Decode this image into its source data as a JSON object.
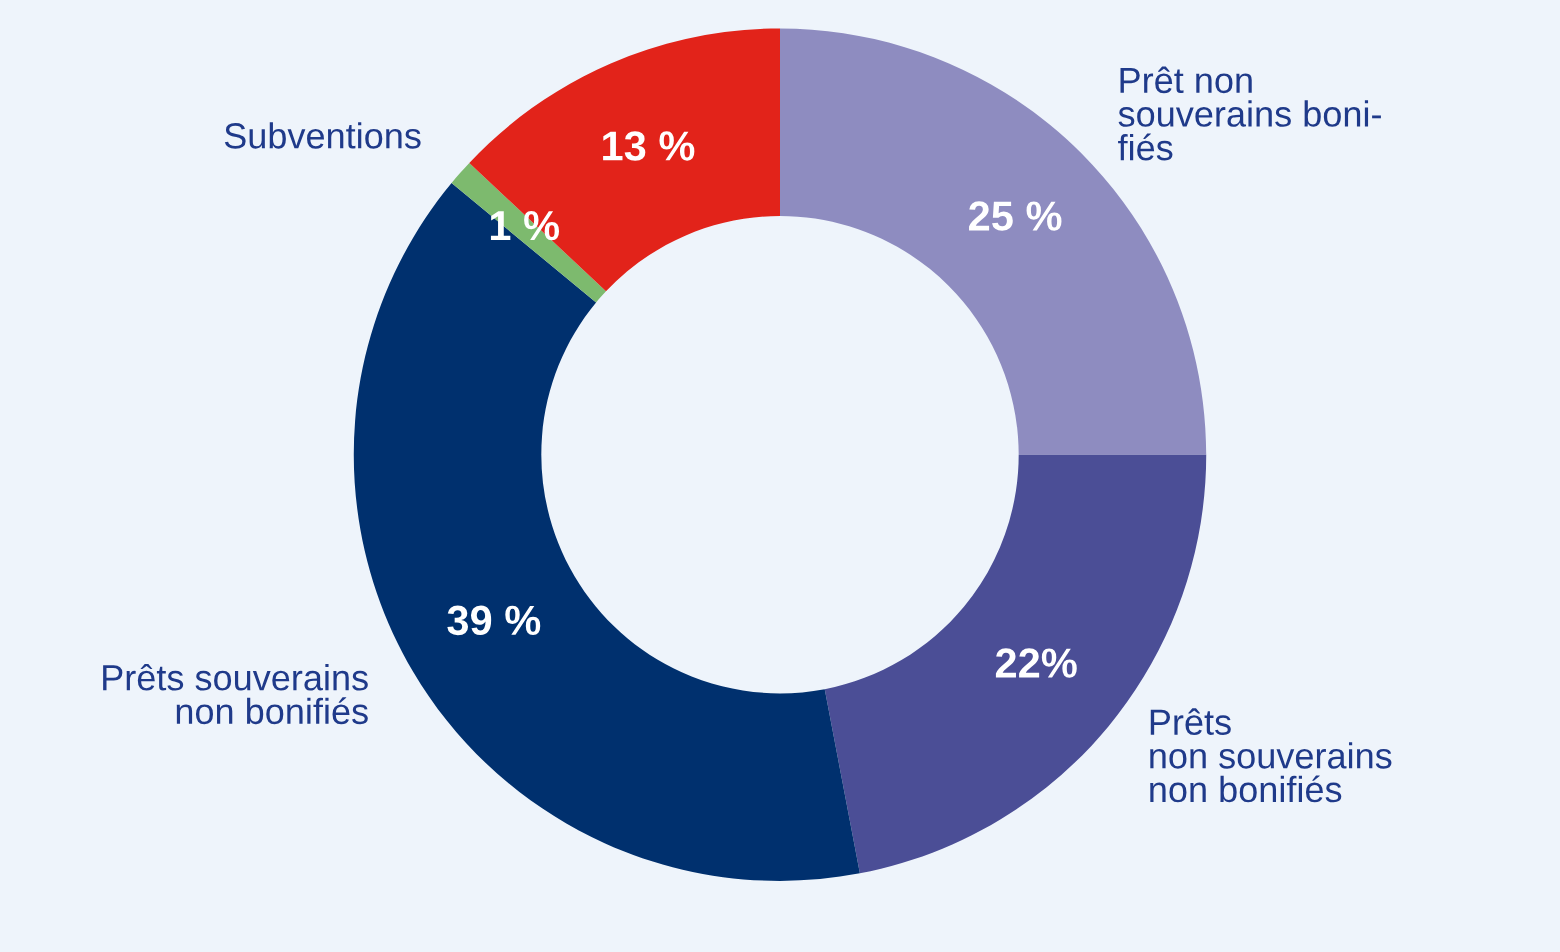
{
  "chart_data": {
    "type": "donut",
    "categories": [
      "Prêt non\nsouverains boni-\nfiés",
      "Prêts\nnon souverains\nnon bonifiés",
      "Prêts souverains\nnon bonifiés",
      "Subventions",
      null
    ],
    "values": [
      25,
      22,
      39,
      1,
      13
    ],
    "colors": [
      "#8e8cc0",
      "#4b4e96",
      "#00306e",
      "#7dba6e",
      "#e2231a"
    ],
    "value_labels": [
      "25 %",
      "22%",
      "39 %",
      "1 %",
      "13 %"
    ],
    "legend": false
  }
}
